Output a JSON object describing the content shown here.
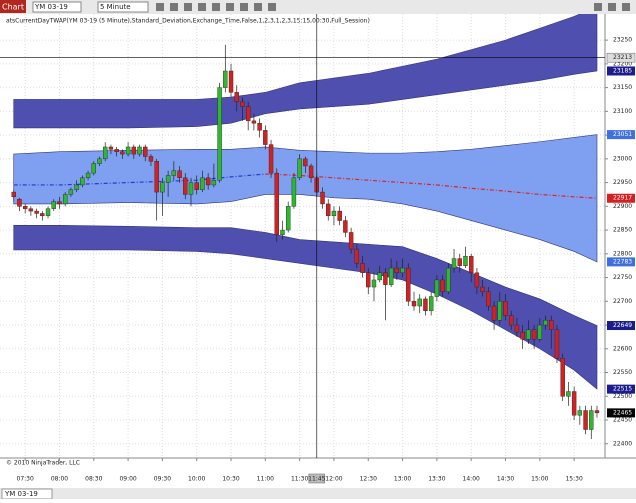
{
  "toolbar": {
    "tag": "Chart",
    "instrument": "YM 03-19",
    "period": "5 Minute"
  },
  "chart_data": {
    "type": "candlestick",
    "indicator_label": "atsCurrentDayTWAP(YM 03-19 (5 Minute),Standard_Deviation,Exchange_Time,False,1,2,3,1,2,3,15:15,00:30,Full_Session)",
    "copyright": "© 2010 NinjaTrader, LLC",
    "tab": "YM 03-19",
    "up_color": "#2eb82e",
    "down_color": "#d42020",
    "xlim": [
      428,
      957
    ],
    "ylim": [
      22370,
      23305
    ],
    "grid": true,
    "xticks": [
      {
        "value": 450,
        "label": "07:30"
      },
      {
        "value": 480,
        "label": "08:00"
      },
      {
        "value": 510,
        "label": "08:30"
      },
      {
        "value": 540,
        "label": "09:00"
      },
      {
        "value": 570,
        "label": "09:30"
      },
      {
        "value": 600,
        "label": "10:00"
      },
      {
        "value": 630,
        "label": "10:30"
      },
      {
        "value": 660,
        "label": "11:00"
      },
      {
        "value": 690,
        "label": "11:30"
      },
      {
        "value": 720,
        "label": "12:00"
      },
      {
        "value": 750,
        "label": "12:30"
      },
      {
        "value": 780,
        "label": "13:00"
      },
      {
        "value": 810,
        "label": "13:30"
      },
      {
        "value": 840,
        "label": "14:00"
      },
      {
        "value": 870,
        "label": "14:30"
      },
      {
        "value": 900,
        "label": "15:00"
      },
      {
        "value": 930,
        "label": "15:30"
      }
    ],
    "yticks": [
      22400,
      22450,
      22500,
      22550,
      22600,
      22650,
      22700,
      22750,
      22800,
      22850,
      22900,
      22950,
      23000,
      23050,
      23100,
      23150,
      23200,
      23250
    ],
    "band_x": [
      440,
      480,
      540,
      600,
      630,
      660,
      690,
      720,
      750,
      780,
      810,
      840,
      870,
      900,
      930,
      950
    ],
    "bands": [
      {
        "color": "#4f4fb0",
        "upper": [
          23125,
          23125,
          23125,
          23125,
          23130,
          23140,
          23160,
          23170,
          23180,
          23195,
          23210,
          23230,
          23250,
          23275,
          23300,
          23320
        ],
        "lower": [
          23065,
          23065,
          23065,
          23068,
          23075,
          23095,
          23105,
          23110,
          23115,
          23125,
          23135,
          23145,
          23155,
          23165,
          23178,
          23185
        ]
      },
      {
        "color": "#7f9ff0",
        "upper": [
          23010,
          23015,
          23018,
          23020,
          23020,
          23025,
          23018,
          23015,
          23012,
          23012,
          23015,
          23020,
          23028,
          23036,
          23045,
          23051
        ],
        "lower": [
          22905,
          22905,
          22908,
          22905,
          22910,
          22925,
          22925,
          22918,
          22915,
          22905,
          22890,
          22870,
          22850,
          22830,
          22805,
          22783
        ]
      },
      {
        "color": "#4f4fb0",
        "upper": [
          22860,
          22860,
          22858,
          22855,
          22855,
          22845,
          22830,
          22825,
          22820,
          22815,
          22790,
          22760,
          22730,
          22705,
          22670,
          22649
        ],
        "lower": [
          22808,
          22808,
          22808,
          22805,
          22800,
          22790,
          22780,
          22770,
          22760,
          22745,
          22715,
          22680,
          22640,
          22600,
          22555,
          22515
        ]
      }
    ],
    "vwap": [
      {
        "color": "#1a3fd0",
        "values": [
          22945,
          22945,
          22950,
          22955,
          22962,
          22968,
          null,
          null,
          null,
          null,
          null,
          null,
          null,
          null,
          null,
          null
        ]
      },
      {
        "color": "#dd2222",
        "values": [
          null,
          null,
          null,
          null,
          null,
          22968,
          22965,
          22960,
          22955,
          22950,
          22945,
          22938,
          22932,
          22925,
          22920,
          22917
        ]
      }
    ],
    "candles": [
      [
        440,
        22930,
        22935,
        22910,
        22920
      ],
      [
        445,
        22915,
        22918,
        22890,
        22900
      ],
      [
        450,
        22900,
        22905,
        22885,
        22895
      ],
      [
        455,
        22895,
        22900,
        22880,
        22890
      ],
      [
        460,
        22890,
        22895,
        22875,
        22885
      ],
      [
        465,
        22885,
        22890,
        22870,
        22880
      ],
      [
        470,
        22880,
        22900,
        22875,
        22895
      ],
      [
        475,
        22895,
        22915,
        22890,
        22910
      ],
      [
        480,
        22910,
        22920,
        22895,
        22905
      ],
      [
        485,
        22905,
        22930,
        22900,
        22925
      ],
      [
        490,
        22925,
        22940,
        22920,
        22935
      ],
      [
        495,
        22935,
        22955,
        22930,
        22945
      ],
      [
        500,
        22945,
        22965,
        22940,
        22960
      ],
      [
        505,
        22960,
        22975,
        22955,
        22970
      ],
      [
        510,
        22970,
        22995,
        22965,
        22990
      ],
      [
        515,
        22990,
        23005,
        22985,
        23000
      ],
      [
        520,
        23000,
        23035,
        22995,
        23025
      ],
      [
        525,
        23025,
        23030,
        23010,
        23020
      ],
      [
        530,
        23020,
        23025,
        23005,
        23015
      ],
      [
        535,
        23015,
        23020,
        23000,
        23010
      ],
      [
        540,
        23010,
        23035,
        23005,
        23025
      ],
      [
        545,
        23025,
        23030,
        23000,
        23010
      ],
      [
        550,
        23010,
        23030,
        23005,
        23025
      ],
      [
        555,
        23025,
        23030,
        22995,
        23005
      ],
      [
        560,
        23005,
        23010,
        22985,
        22995
      ],
      [
        565,
        22995,
        23000,
        22870,
        22930
      ],
      [
        570,
        22930,
        22960,
        22880,
        22950
      ],
      [
        575,
        22950,
        22975,
        22920,
        22965
      ],
      [
        580,
        22965,
        22995,
        22955,
        22975
      ],
      [
        585,
        22975,
        22985,
        22950,
        22960
      ],
      [
        590,
        22960,
        22970,
        22915,
        22925
      ],
      [
        595,
        22925,
        22960,
        22900,
        22950
      ],
      [
        600,
        22950,
        22965,
        22925,
        22935
      ],
      [
        605,
        22935,
        22975,
        22930,
        22960
      ],
      [
        610,
        22960,
        22970,
        22935,
        22945
      ],
      [
        615,
        22945,
        22990,
        22940,
        22955
      ],
      [
        620,
        22955,
        23160,
        22950,
        23150
      ],
      [
        625,
        23150,
        23240,
        23140,
        23185
      ],
      [
        630,
        23185,
        23200,
        23130,
        23140
      ],
      [
        635,
        23140,
        23155,
        23100,
        23120
      ],
      [
        640,
        23120,
        23130,
        23080,
        23110
      ],
      [
        645,
        23110,
        23120,
        23060,
        23080
      ],
      [
        650,
        23080,
        23095,
        23060,
        23075
      ],
      [
        655,
        23075,
        23085,
        23045,
        23060
      ],
      [
        660,
        23060,
        23070,
        23020,
        23030
      ],
      [
        665,
        23030,
        23040,
        22960,
        22970
      ],
      [
        670,
        22970,
        22980,
        22825,
        22840
      ],
      [
        675,
        22840,
        22870,
        22830,
        22850
      ],
      [
        680,
        22850,
        22910,
        22845,
        22900
      ],
      [
        685,
        22900,
        22970,
        22895,
        22960
      ],
      [
        690,
        22960,
        23010,
        22955,
        23000
      ],
      [
        695,
        23000,
        23005,
        22970,
        22985
      ],
      [
        700,
        22985,
        22990,
        22950,
        22960
      ],
      [
        705,
        22960,
        22970,
        22920,
        22930
      ],
      [
        710,
        22930,
        22940,
        22895,
        22905
      ],
      [
        715,
        22905,
        22915,
        22870,
        22880
      ],
      [
        720,
        22880,
        22900,
        22860,
        22890
      ],
      [
        725,
        22890,
        22900,
        22860,
        22870
      ],
      [
        730,
        22870,
        22880,
        22835,
        22845
      ],
      [
        735,
        22845,
        22855,
        22800,
        22810
      ],
      [
        740,
        22810,
        22820,
        22770,
        22780
      ],
      [
        745,
        22780,
        22795,
        22750,
        22760
      ],
      [
        750,
        22760,
        22770,
        22715,
        22730
      ],
      [
        755,
        22730,
        22760,
        22700,
        22745
      ],
      [
        760,
        22745,
        22775,
        22740,
        22760
      ],
      [
        765,
        22760,
        22770,
        22660,
        22735
      ],
      [
        770,
        22735,
        22790,
        22730,
        22770
      ],
      [
        775,
        22770,
        22785,
        22745,
        22760
      ],
      [
        780,
        22760,
        22790,
        22750,
        22770
      ],
      [
        785,
        22770,
        22780,
        22690,
        22700
      ],
      [
        790,
        22700,
        22720,
        22680,
        22690
      ],
      [
        795,
        22690,
        22715,
        22675,
        22705
      ],
      [
        800,
        22705,
        22710,
        22670,
        22680
      ],
      [
        805,
        22680,
        22720,
        22670,
        22710
      ],
      [
        810,
        22710,
        22755,
        22700,
        22745
      ],
      [
        815,
        22745,
        22755,
        22710,
        22720
      ],
      [
        820,
        22720,
        22780,
        22715,
        22770
      ],
      [
        825,
        22770,
        22810,
        22760,
        22790
      ],
      [
        830,
        22790,
        22800,
        22760,
        22775
      ],
      [
        835,
        22775,
        22815,
        22770,
        22795
      ],
      [
        840,
        22795,
        22800,
        22740,
        22760
      ],
      [
        845,
        22760,
        22770,
        22715,
        22730
      ],
      [
        850,
        22730,
        22745,
        22710,
        22720
      ],
      [
        855,
        22720,
        22730,
        22680,
        22690
      ],
      [
        860,
        22690,
        22700,
        22640,
        22660
      ],
      [
        865,
        22660,
        22720,
        22650,
        22700
      ],
      [
        870,
        22700,
        22715,
        22660,
        22670
      ],
      [
        875,
        22670,
        22680,
        22640,
        22650
      ],
      [
        880,
        22650,
        22665,
        22625,
        22635
      ],
      [
        885,
        22635,
        22650,
        22600,
        22620
      ],
      [
        890,
        22620,
        22660,
        22610,
        22640
      ],
      [
        895,
        22640,
        22650,
        22600,
        22620
      ],
      [
        900,
        22620,
        22665,
        22615,
        22650
      ],
      [
        905,
        22650,
        22670,
        22640,
        22660
      ],
      [
        910,
        22660,
        22670,
        22600,
        22640
      ],
      [
        915,
        22640,
        22650,
        22570,
        22580
      ],
      [
        920,
        22580,
        22590,
        22490,
        22500
      ],
      [
        925,
        22500,
        22530,
        22480,
        22510
      ],
      [
        930,
        22510,
        22520,
        22450,
        22460
      ],
      [
        935,
        22460,
        22480,
        22440,
        22470
      ],
      [
        940,
        22470,
        22480,
        22420,
        22430
      ],
      [
        945,
        22430,
        22480,
        22410,
        22470
      ],
      [
        950,
        22470,
        22480,
        22455,
        22465
      ]
    ],
    "crosshair": {
      "time": {
        "value": 705,
        "label": "11:45"
      },
      "price": 23213
    },
    "price_markers": [
      {
        "value": 23185,
        "color": "#1c1c8c"
      },
      {
        "value": 23051,
        "color": "#3f6fe0"
      },
      {
        "value": 22917,
        "color": "#d42020"
      },
      {
        "value": 22783,
        "color": "#3f6fe0"
      },
      {
        "value": 22649,
        "color": "#1c1c8c"
      },
      {
        "value": 22515,
        "color": "#1c1c8c"
      },
      {
        "value": 22465,
        "color": "#000000"
      }
    ]
  }
}
